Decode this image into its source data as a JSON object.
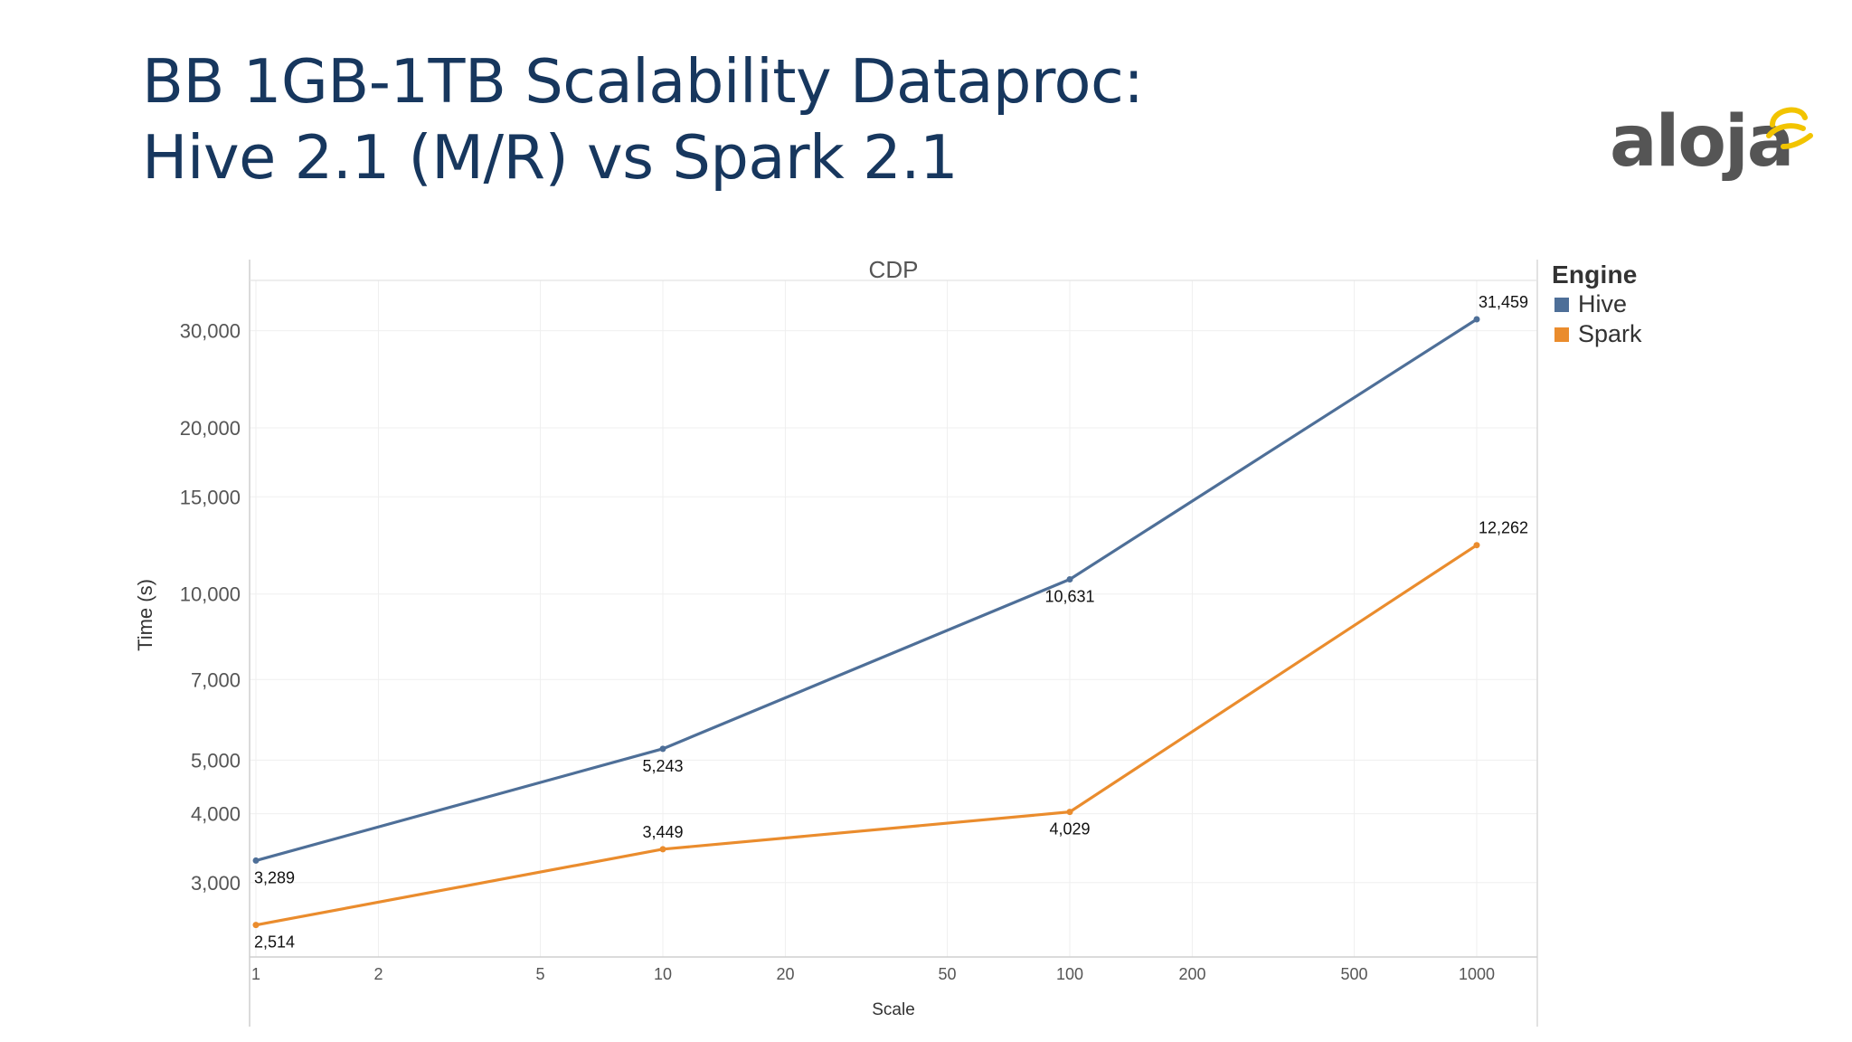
{
  "slide": {
    "title_line1": "BB 1GB-1TB Scalability Dataproc:",
    "title_line2": "Hive 2.1 (M/R) vs Spark 2.1"
  },
  "logo": {
    "text": "aloja",
    "color": "#555555",
    "accent": "#f2c400"
  },
  "chart_data": {
    "type": "line",
    "title": "CDP",
    "xlabel": "Scale",
    "ylabel": "Time (s)",
    "x_scale": "log",
    "y_scale": "log",
    "xlim": [
      1,
      1000
    ],
    "ylim": [
      2200,
      37000
    ],
    "x_ticks": [
      1,
      2,
      5,
      10,
      20,
      50,
      100,
      200,
      500,
      1000
    ],
    "x_tick_labels": [
      "1",
      "2",
      "5",
      "10",
      "20",
      "50",
      "100",
      "200",
      "500",
      "1000"
    ],
    "y_ticks": [
      3000,
      4000,
      5000,
      7000,
      10000,
      15000,
      20000,
      30000
    ],
    "y_tick_labels": [
      "3,000",
      "4,000",
      "5,000",
      "7,000",
      "10,000",
      "15,000",
      "20,000",
      "30,000"
    ],
    "x": [
      1,
      10,
      100,
      1000
    ],
    "grid": true,
    "legend_title": "Engine",
    "legend_position": "right",
    "series": [
      {
        "name": "Hive",
        "color": "#4e6f98",
        "values": [
          3289,
          5243,
          10631,
          31459
        ],
        "labels": [
          "3,289",
          "5,243",
          "10,631",
          "31,459"
        ],
        "label_positions": [
          "below",
          "below",
          "below",
          "above"
        ]
      },
      {
        "name": "Spark",
        "color": "#ea8c2d",
        "values": [
          2514,
          3449,
          4029,
          12262
        ],
        "labels": [
          "2,514",
          "3,449",
          "4,029",
          "12,262"
        ],
        "label_positions": [
          "below",
          "above",
          "below",
          "above"
        ]
      }
    ]
  }
}
